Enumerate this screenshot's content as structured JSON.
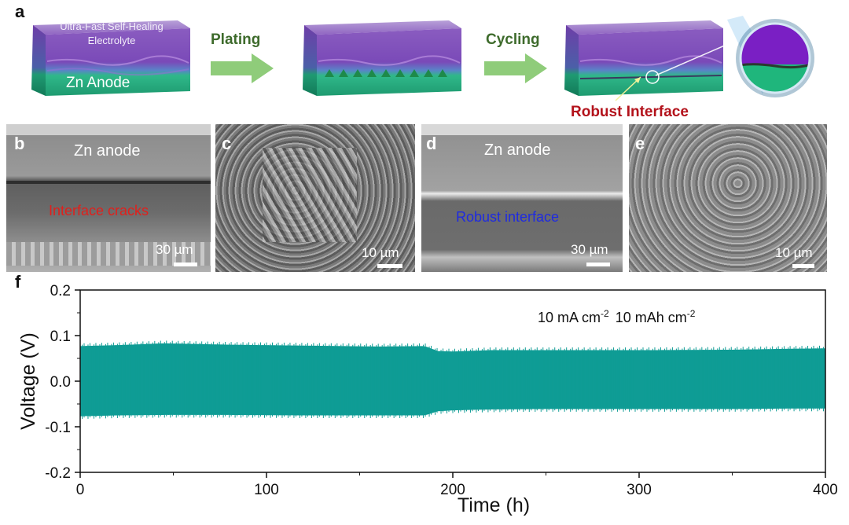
{
  "figure": {
    "panel_a": {
      "letter": "a",
      "electrolyte_label_line1": "Ultra-Fast Self-Healing",
      "electrolyte_label_line2": "Electrolyte",
      "anode_label": "Zn Anode",
      "step1_label": "Plating",
      "step2_label": "Cycling",
      "interface_label": "Robust Interface",
      "colors": {
        "electrolyte": "#8e5cc0",
        "anode": "#2fb889",
        "arrow": "#8fcc7a",
        "interface_text": "#b3121b"
      }
    },
    "panel_b": {
      "letter": "b",
      "top_label": "Zn anode",
      "mid_label": "Interface cracks",
      "scale": "30 µm",
      "mid_label_color": "#e0201c"
    },
    "panel_c": {
      "letter": "c",
      "scale": "10 µm"
    },
    "panel_d": {
      "letter": "d",
      "top_label": "Zn anode",
      "mid_label": "Robust interface",
      "scale": "30 µm",
      "mid_label_color": "#1f2be0"
    },
    "panel_e": {
      "letter": "e",
      "scale": "10 µm"
    },
    "panel_f": {
      "letter": "f",
      "annotation_part1": "10 mA cm",
      "annotation_sup1": "-2",
      "annotation_part2": "10 mAh cm",
      "annotation_sup2": "-2"
    }
  },
  "chart_data": {
    "type": "line",
    "xlabel": "Time (h)",
    "ylabel": "Voltage (V)",
    "xlim": [
      0,
      400
    ],
    "ylim": [
      -0.2,
      0.2
    ],
    "xticks": [
      0,
      100,
      200,
      300,
      400
    ],
    "yticks": [
      -0.2,
      -0.1,
      0.0,
      0.1,
      0.2
    ],
    "ytick_labels": [
      "-0.2",
      "-0.1",
      "0.0",
      "0.1",
      "0.2"
    ],
    "series": [
      {
        "color": "#0f9c95",
        "upper_envelope": {
          "x": [
            0,
            20,
            45,
            80,
            120,
            160,
            185,
            192,
            200,
            220,
            250,
            300,
            350,
            380,
            400
          ],
          "y": [
            0.077,
            0.079,
            0.083,
            0.08,
            0.078,
            0.076,
            0.077,
            0.066,
            0.065,
            0.068,
            0.068,
            0.068,
            0.069,
            0.071,
            0.072
          ]
        },
        "lower_envelope": {
          "x": [
            0,
            20,
            45,
            80,
            120,
            160,
            185,
            192,
            200,
            220,
            250,
            300,
            350,
            380,
            400
          ],
          "y": [
            -0.077,
            -0.075,
            -0.074,
            -0.074,
            -0.075,
            -0.075,
            -0.075,
            -0.066,
            -0.064,
            -0.062,
            -0.061,
            -0.061,
            -0.061,
            -0.06,
            -0.06
          ]
        }
      }
    ],
    "grid": false
  }
}
